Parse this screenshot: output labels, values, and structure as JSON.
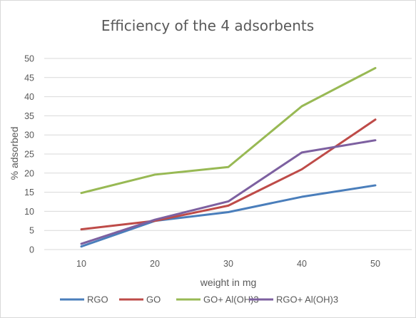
{
  "chart_data": {
    "type": "line",
    "title": "Efficiency of the 4 adsorbents",
    "xlabel": "weight in mg",
    "ylabel": "% adsorbed",
    "categories": [
      "10",
      "20",
      "30",
      "40",
      "50"
    ],
    "ylim": [
      0,
      50
    ],
    "yticks": [
      "0",
      "5",
      "10",
      "15",
      "20",
      "25",
      "30",
      "35",
      "40",
      "45",
      "50"
    ],
    "grid": true,
    "legend_position": "bottom",
    "series": [
      {
        "name": "RGO",
        "color": "#4a7ebb",
        "values": [
          0.8,
          7.5,
          9.8,
          13.8,
          16.8
        ]
      },
      {
        "name": "GO",
        "color": "#be4b48",
        "values": [
          5.3,
          7.5,
          11.5,
          21,
          34
        ]
      },
      {
        "name": "GO+ Al(OH)3",
        "color": "#98b954",
        "values": [
          14.8,
          19.6,
          21.6,
          37.5,
          47.5
        ]
      },
      {
        "name": "RGO+ Al(OH)3",
        "color": "#7d60a0",
        "values": [
          1.5,
          7.8,
          12.6,
          25.4,
          28.6
        ]
      }
    ]
  }
}
